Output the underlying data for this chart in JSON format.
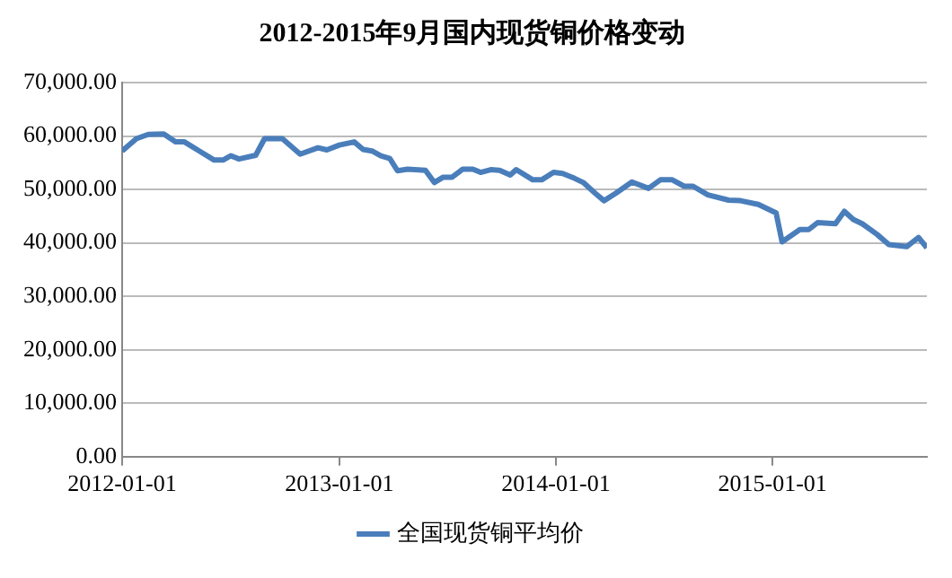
{
  "chart_data": {
    "type": "line",
    "title": "2012-2015年9月国内现货铜价格变动",
    "x": [
      "2012-01-01",
      "2012-01-25",
      "2012-02-14",
      "2012-03-11",
      "2012-03-31",
      "2012-04-15",
      "2012-05-10",
      "2012-06-04",
      "2012-06-19",
      "2012-07-02",
      "2012-07-16",
      "2012-08-13",
      "2012-08-28",
      "2012-09-27",
      "2012-10-27",
      "2012-11-26",
      "2012-12-11",
      "2013-01-01",
      "2013-01-26",
      "2013-02-10",
      "2013-02-25",
      "2013-03-12",
      "2013-03-27",
      "2013-04-09",
      "2013-04-26",
      "2013-05-26",
      "2013-06-10",
      "2013-06-25",
      "2013-07-10",
      "2013-07-28",
      "2013-08-14",
      "2013-08-27",
      "2013-09-13",
      "2013-09-28",
      "2013-10-16",
      "2013-10-26",
      "2013-11-23",
      "2013-12-08",
      "2013-12-28",
      "2014-01-12",
      "2014-02-01",
      "2014-02-16",
      "2014-03-08",
      "2014-03-23",
      "2014-04-12",
      "2014-05-09",
      "2014-06-06",
      "2014-06-26",
      "2014-07-16",
      "2014-08-05",
      "2014-08-20",
      "2014-09-14",
      "2014-10-19",
      "2014-11-08",
      "2014-12-08",
      "2015-01-07",
      "2015-01-17",
      "2015-02-16",
      "2015-03-03",
      "2015-03-18",
      "2015-04-17",
      "2015-05-02",
      "2015-05-17",
      "2015-06-01",
      "2015-06-26",
      "2015-07-16",
      "2015-08-15",
      "2015-09-04",
      "2015-09-18"
    ],
    "series": [
      {
        "name": "全国现货铜平均价",
        "color": "#4a7ebb",
        "values": [
          57200,
          59500,
          60300,
          60400,
          58900,
          58900,
          57200,
          55500,
          55500,
          56300,
          55700,
          56400,
          59500,
          59500,
          56600,
          57800,
          57400,
          58300,
          58900,
          57500,
          57200,
          56300,
          55800,
          53500,
          53800,
          53600,
          51300,
          52300,
          52300,
          53800,
          53800,
          53200,
          53700,
          53600,
          52700,
          53700,
          51800,
          51800,
          53200,
          53000,
          52100,
          51300,
          49300,
          47900,
          49300,
          51400,
          50200,
          51800,
          51800,
          50600,
          50600,
          49000,
          48000,
          47900,
          47200,
          45600,
          40200,
          42500,
          42500,
          43800,
          43600,
          45900,
          44400,
          43600,
          41600,
          39700,
          39300,
          41000,
          39100
        ]
      }
    ],
    "xlim": [
      "2012-01-01",
      "2015-09-18"
    ],
    "xticks": [
      "2012-01-01",
      "2013-01-01",
      "2014-01-01",
      "2015-01-01"
    ],
    "ylim": [
      0,
      70000
    ],
    "yticks": [
      {
        "value": 0,
        "label": "0.00"
      },
      {
        "value": 10000,
        "label": "10,000.00"
      },
      {
        "value": 20000,
        "label": "20,000.00"
      },
      {
        "value": 30000,
        "label": "30,000.00"
      },
      {
        "value": 40000,
        "label": "40,000.00"
      },
      {
        "value": 50000,
        "label": "50,000.00"
      },
      {
        "value": 60000,
        "label": "60,000.00"
      },
      {
        "value": 70000,
        "label": "70,000.00"
      }
    ],
    "grid": "y",
    "legend": "bottom",
    "marker": "none",
    "line_style": "solid"
  }
}
